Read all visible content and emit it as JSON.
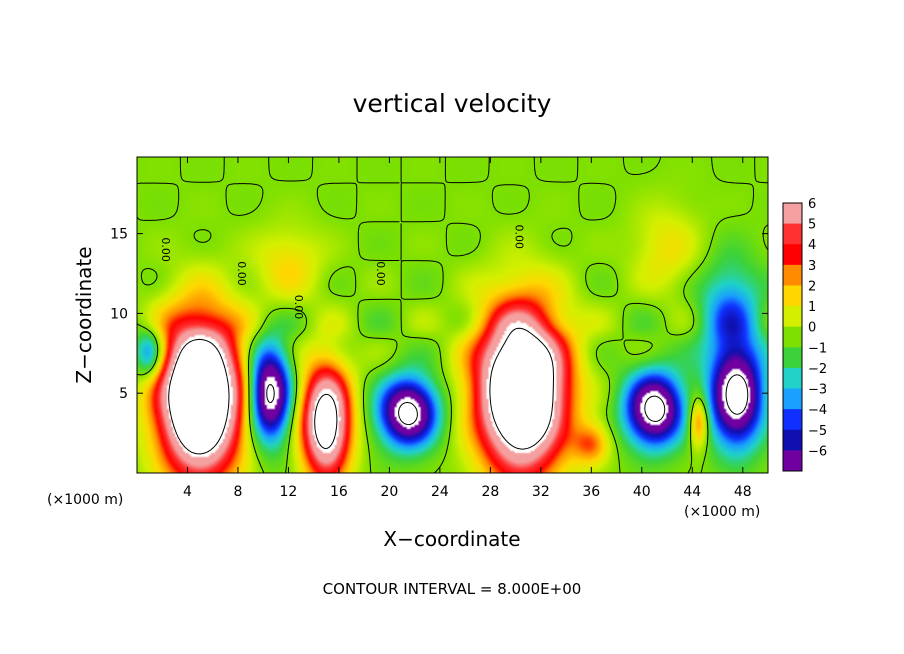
{
  "chart_data": {
    "type": "heatmap",
    "title": "vertical velocity",
    "xlabel": "X−coordinate",
    "ylabel": "Z−coordinate",
    "x_unit_left": "(×1000 m)",
    "x_unit_right": "(×1000 m)",
    "xlim": [
      0,
      50
    ],
    "ylim": [
      0,
      19.8
    ],
    "x_ticks": [
      4,
      8,
      12,
      16,
      20,
      24,
      28,
      32,
      36,
      40,
      44,
      48
    ],
    "y_ticks": [
      5,
      10,
      15
    ],
    "colorbar": {
      "levels": [
        6,
        5,
        4,
        3,
        2,
        1,
        0,
        -1,
        -2,
        -3,
        -4,
        -5,
        -6
      ],
      "labels": [
        "6",
        "5",
        "4",
        "3",
        "2",
        "1",
        "0",
        "−1",
        "−2",
        "−3",
        "−4",
        "−5",
        "−6"
      ],
      "colors": [
        "#f5a0a0",
        "#ff3030",
        "#ff0000",
        "#ff8c00",
        "#ffd700",
        "#d4f000",
        "#7de000",
        "#3cd23c",
        "#20d2c8",
        "#1aa0ff",
        "#1030ff",
        "#1010b0",
        "#7000a0"
      ]
    },
    "contour_labels": [
      "0.00",
      "0.00",
      "0.00",
      "0.00",
      "0.00"
    ],
    "footnote": "CONTOUR INTERVAL = 8.000E+00",
    "features": [
      {
        "kind": "updraft",
        "x": 5.0,
        "z": 4.8,
        "rx": 4.0,
        "rz": 6.0,
        "w": 14
      },
      {
        "kind": "updraft",
        "x": 15.0,
        "z": 3.2,
        "rx": 2.4,
        "rz": 4.4,
        "w": 10
      },
      {
        "kind": "updraft",
        "x": 30.5,
        "z": 5.2,
        "rx": 4.3,
        "rz": 6.2,
        "w": 14
      },
      {
        "kind": "updraft",
        "x": 36.0,
        "z": 1.8,
        "rx": 1.8,
        "rz": 1.6,
        "w": 3
      },
      {
        "kind": "updraft",
        "x": 44.5,
        "z": 3.2,
        "rx": 1.0,
        "rz": 2.0,
        "w": 4
      },
      {
        "kind": "updraft",
        "x": 12.0,
        "z": 13.0,
        "rx": 3.5,
        "rz": 3.0,
        "w": 1.8
      },
      {
        "kind": "updraft",
        "x": 42.0,
        "z": 14.0,
        "rx": 3.5,
        "rz": 3.5,
        "w": 1.6
      },
      {
        "kind": "downdraft",
        "x": 10.5,
        "z": 5.0,
        "rx": 2.0,
        "rz": 3.6,
        "w": -9
      },
      {
        "kind": "downdraft",
        "x": 21.5,
        "z": 3.8,
        "rx": 2.8,
        "rz": 2.6,
        "w": -9
      },
      {
        "kind": "downdraft",
        "x": 41.0,
        "z": 4.0,
        "rx": 2.8,
        "rz": 2.8,
        "w": -9
      },
      {
        "kind": "downdraft",
        "x": 47.5,
        "z": 4.8,
        "rx": 2.6,
        "rz": 3.8,
        "w": -9
      },
      {
        "kind": "downdraft",
        "x": 1.0,
        "z": 7.5,
        "rx": 1.5,
        "rz": 2.0,
        "w": -4
      },
      {
        "kind": "downdraft",
        "x": 47.0,
        "z": 10.0,
        "rx": 3.0,
        "rz": 4.0,
        "w": -3.5
      }
    ]
  }
}
